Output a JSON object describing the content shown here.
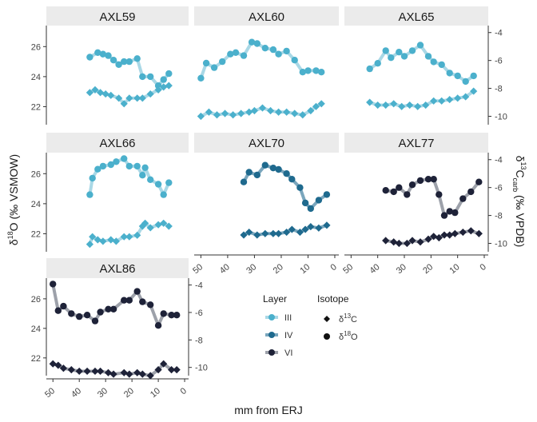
{
  "chart_data": {
    "type": "line",
    "xlabel": "mm from ERJ",
    "ylabel_left": {
      "main": "δ",
      "sup": "18",
      "rest": "O (‰ VSMOW)"
    },
    "ylabel_right": {
      "main": "δ",
      "sup": "13",
      "mid": "C",
      "sub": "carb",
      "rest": " (‰ VPDB)"
    },
    "x_ticks": [
      50,
      40,
      30,
      20,
      10,
      0
    ],
    "xlim": [
      52.5,
      -1.5
    ],
    "y_left_ticks": [
      22,
      24,
      26
    ],
    "y_left_lim": [
      20.8,
      27.4
    ],
    "y_right_ticks": [
      -4,
      -6,
      -8,
      -10
    ],
    "y_right_lim": [
      -10.6,
      -3.5
    ],
    "legend": {
      "layer_title": "Layer",
      "layers": [
        {
          "label": "III",
          "color": "#4bb0cc",
          "line": "#a9d8e6"
        },
        {
          "label": "IV",
          "color": "#1f6a8e",
          "line": "#7aa6bd"
        },
        {
          "label": "VI",
          "color": "#1e2238",
          "line": "#9da1aa"
        }
      ],
      "isotope_title": "Isotope",
      "isotopes": [
        {
          "label_main": "δ",
          "label_sup": "13",
          "label_rest": "C",
          "shape": "diamond"
        },
        {
          "label_main": "δ",
          "label_sup": "18",
          "label_rest": "O",
          "shape": "circle"
        }
      ]
    },
    "panels": [
      {
        "name": "AXL59",
        "layer": "III",
        "d18O": {
          "x": [
            36,
            33,
            31,
            29,
            27,
            25,
            23,
            21,
            18,
            16,
            13,
            10,
            8,
            6
          ],
          "y": [
            25.3,
            25.6,
            25.5,
            25.4,
            25.1,
            24.8,
            25.0,
            25.0,
            25.2,
            24.0,
            24.0,
            23.4,
            23.8,
            24.2
          ]
        },
        "d13C": {
          "x": [
            36,
            34,
            32,
            30,
            28,
            25,
            23,
            21,
            18,
            16,
            13,
            10,
            8,
            6
          ],
          "y": [
            -8.3,
            -8.1,
            -8.3,
            -8.4,
            -8.5,
            -8.7,
            -9.1,
            -8.7,
            -8.7,
            -8.7,
            -8.4,
            -8.1,
            -7.9,
            -7.8
          ]
        }
      },
      {
        "name": "AXL60",
        "layer": "III",
        "d18O": {
          "x": [
            50,
            48,
            45,
            42,
            39,
            37,
            34,
            31,
            29,
            26,
            23,
            21,
            18,
            15,
            12,
            10,
            7,
            5
          ],
          "y": [
            23.9,
            24.9,
            24.6,
            25.0,
            25.5,
            25.6,
            25.4,
            26.3,
            26.2,
            25.9,
            25.8,
            25.5,
            25.7,
            25.1,
            24.3,
            24.4,
            24.4,
            24.3
          ]
        },
        "d18O_note": "",
        "d13C": {
          "x": [
            50,
            47,
            44,
            41,
            38,
            35,
            32,
            30,
            27,
            24,
            21,
            18,
            15,
            12,
            9,
            7,
            5
          ],
          "y": [
            -10.0,
            -9.7,
            -9.9,
            -9.8,
            -9.9,
            -9.8,
            -9.7,
            -9.6,
            -9.4,
            -9.6,
            -9.7,
            -9.7,
            -9.8,
            -9.9,
            -9.6,
            -9.3,
            -9.1
          ]
        }
      },
      {
        "name": "AXL65",
        "layer": "III",
        "d18O": {
          "x": [
            43,
            40,
            37,
            35,
            32,
            30,
            27,
            24,
            21,
            19,
            16,
            13,
            10,
            7,
            4
          ],
          "y": [
            -6.6,
            -6.2,
            -5.3,
            -5.8,
            -5.4,
            -5.7,
            -5.3,
            -4.9,
            -5.7,
            -6.1,
            -6.3,
            -6.9,
            -7.1,
            -7.5,
            -7.1
          ]
        },
        "d13C": {
          "x": [
            43,
            40,
            37,
            34,
            31,
            28,
            25,
            22,
            19,
            16,
            13,
            10,
            7,
            4
          ],
          "y": [
            -9.0,
            -9.2,
            -9.2,
            -9.1,
            -9.3,
            -9.2,
            -9.3,
            -9.2,
            -8.9,
            -8.9,
            -8.8,
            -8.7,
            -8.6,
            -8.2
          ]
        }
      },
      {
        "name": "AXL66",
        "layer": "III",
        "d18O": {
          "x": [
            36,
            35,
            33,
            31,
            28,
            26,
            23,
            21,
            18,
            16,
            15,
            13,
            10,
            8,
            6
          ],
          "y": [
            24.6,
            25.7,
            26.3,
            26.5,
            26.6,
            26.8,
            27.0,
            26.5,
            26.5,
            25.9,
            26.4,
            25.6,
            25.3,
            24.6,
            25.4
          ]
        },
        "d13C": {
          "x": [
            36,
            35,
            33,
            31,
            28,
            26,
            23,
            21,
            18,
            16,
            15,
            13,
            10,
            8,
            6
          ],
          "y": [
            21.3,
            21.8,
            21.6,
            21.5,
            21.6,
            21.5,
            21.8,
            21.8,
            21.9,
            22.5,
            22.7,
            22.4,
            22.6,
            22.7,
            22.5
          ]
        }
      },
      {
        "name": "AXL70",
        "layer": "IV",
        "d18O": {
          "x": [
            34,
            32,
            29,
            26,
            23,
            21,
            18,
            16,
            13,
            11,
            9,
            6,
            3
          ],
          "y": [
            -5.6,
            -4.9,
            -5.1,
            -4.4,
            -4.6,
            -4.7,
            -5.0,
            -5.4,
            -6.0,
            -7.1,
            -7.5,
            -6.9,
            -6.5
          ]
        },
        "d13C": {
          "x": [
            34,
            32,
            29,
            26,
            23,
            21,
            18,
            16,
            13,
            11,
            9,
            6,
            3
          ],
          "y": [
            -9.4,
            -9.2,
            -9.4,
            -9.3,
            -9.3,
            -9.3,
            -9.2,
            -9.0,
            -9.2,
            -9.0,
            -8.8,
            -8.9,
            -8.7
          ]
        }
      },
      {
        "name": "AXL77",
        "layer": "VI",
        "d18O": {
          "x": [
            37,
            34,
            32,
            29,
            27,
            24,
            21,
            19,
            17,
            15,
            13,
            11,
            8,
            5,
            2
          ],
          "y": [
            -6.2,
            -6.3,
            -6.0,
            -6.5,
            -5.8,
            -5.5,
            -5.4,
            -5.4,
            -6.5,
            -8.0,
            -7.7,
            -7.8,
            -6.8,
            -6.3,
            -5.6
          ]
        },
        "d13C": {
          "x": [
            37,
            34,
            32,
            29,
            27,
            24,
            21,
            19,
            17,
            15,
            13,
            11,
            8,
            5,
            2
          ],
          "y": [
            -9.8,
            -9.9,
            -10.0,
            -10.0,
            -9.8,
            -9.9,
            -9.7,
            -9.5,
            -9.6,
            -9.4,
            -9.4,
            -9.3,
            -9.2,
            -9.1,
            -9.3
          ]
        }
      },
      {
        "name": "AXL86",
        "layer": "VI",
        "d18O": {
          "x": [
            50,
            48,
            46,
            43,
            40,
            37,
            34,
            32,
            29,
            27,
            23,
            21,
            18,
            16,
            13,
            10,
            8,
            5,
            3
          ],
          "y": [
            27.0,
            25.2,
            25.5,
            25.0,
            24.8,
            24.9,
            24.5,
            25.1,
            25.3,
            25.3,
            25.9,
            25.9,
            26.5,
            25.8,
            25.6,
            24.2,
            25.0,
            24.9,
            24.9
          ]
        },
        "d13C": {
          "x": [
            50,
            48,
            46,
            43,
            40,
            37,
            34,
            32,
            29,
            27,
            23,
            21,
            18,
            16,
            13,
            10,
            8,
            5,
            3
          ],
          "y": [
            21.6,
            21.5,
            21.3,
            21.2,
            21.1,
            21.1,
            21.1,
            21.1,
            21.0,
            20.9,
            21.0,
            20.9,
            21.0,
            20.9,
            20.8,
            21.2,
            21.6,
            21.2,
            21.2
          ]
        }
      }
    ]
  }
}
